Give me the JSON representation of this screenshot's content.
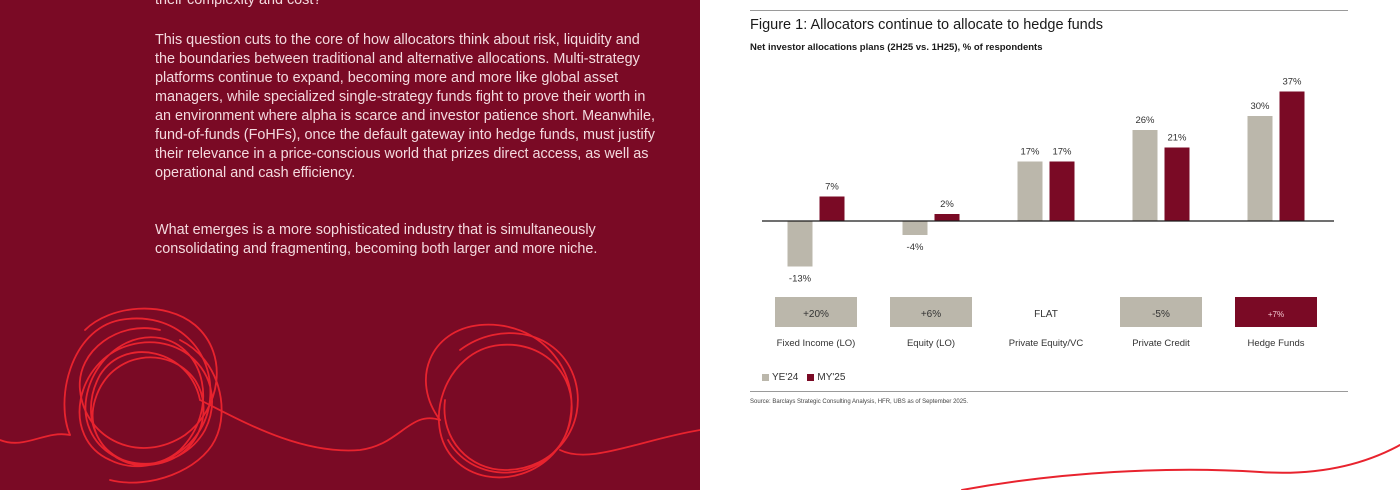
{
  "article": {
    "lead_fragment": "their complexity and cost?",
    "paragraphs": [
      "This question cuts to the core of how allocators think about risk, liquidity and the boundaries between traditional and alternative allocations. Multi-strategy platforms continue to expand, becoming more and more like global asset managers, while specialized single-strategy funds fight to prove their worth in an environment where alpha is scarce and investor patience short. Meanwhile, fund-of-funds (FoHFs), once the default gateway into hedge funds, must justify their relevance in a price-conscious world that prizes direct access, as well as operational and cash efficiency.",
      "What emerges is a more sophisticated industry that is simultaneously consolidating and fragmenting, becoming both larger and more niche."
    ]
  },
  "figure": {
    "title": "Figure 1: Allocators continue to allocate to hedge funds",
    "subtitle": "Net investor allocations plans (2H25 vs. 1H25), % of respondents",
    "source": "Source: Barclays Strategic Consulting Analysis, HFR, UBS as of September 2025."
  },
  "chart_data": {
    "type": "bar",
    "categories": [
      "Fixed Income (LO)",
      "Equity (LO)",
      "Private Equity/VC",
      "Private Credit",
      "Hedge Funds"
    ],
    "series": [
      {
        "name": "YE'24",
        "values": [
          -13,
          -4,
          17,
          26,
          30
        ],
        "labels": [
          "-13%",
          "-4%",
          "17%",
          "26%",
          "30%"
        ],
        "color": "#bbb7ab"
      },
      {
        "name": "MY'25",
        "values": [
          7,
          2,
          17,
          21,
          37
        ],
        "labels": [
          "7%",
          "2%",
          "17%",
          "21%",
          "37%"
        ],
        "color": "#7a0a25"
      }
    ],
    "changes": [
      {
        "label": "+20%",
        "style": "grey"
      },
      {
        "label": "+6%",
        "style": "grey"
      },
      {
        "label": "FLAT",
        "style": "none"
      },
      {
        "label": "-5%",
        "style": "grey"
      },
      {
        "label": "+7%",
        "style": "maroon"
      }
    ],
    "ylim": [
      -13,
      37
    ],
    "grid": false,
    "legend_position": "bottom-left"
  },
  "colors": {
    "background_left": "#7a0a25",
    "accent_red": "#e8232e",
    "grey_bar": "#bbb7ab",
    "maroon_bar": "#7a0a25"
  }
}
